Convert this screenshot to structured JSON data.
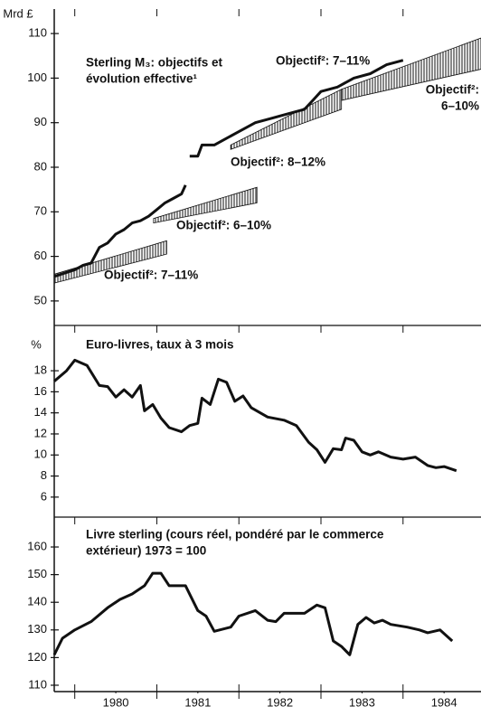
{
  "chart_data": [
    {
      "type": "line",
      "y_label": "Mrd £",
      "title": [
        "Sterling M₃: objectifs et",
        "évolution effective¹"
      ],
      "annotations": [
        "Objectif²: 7–11%",
        "Objectif²: 6–10%",
        "Objectif²: 8–12%",
        "Objectif²: 7–11%",
        "Objectif²:",
        "6–10%"
      ],
      "color": "#111",
      "xlim": [
        1979.75,
        1984.95
      ],
      "ylim": [
        44.5,
        115.5
      ],
      "yticks": [
        50,
        60,
        70,
        80,
        90,
        100,
        110
      ],
      "x": [
        1979.75,
        1980.0,
        1980.1,
        1980.2,
        1980.3,
        1980.4,
        1980.5,
        1980.6,
        1980.7,
        1980.8,
        1980.9,
        1981.0,
        1981.1,
        1981.2,
        1981.3,
        1981.35,
        1981.38,
        1981.4,
        1981.5,
        1981.55,
        1981.7,
        1981.8,
        1982.0,
        1982.2,
        1982.4,
        1982.6,
        1982.8,
        1982.9,
        1983.0,
        1983.2,
        1983.4,
        1983.6,
        1983.8,
        1984.0
      ],
      "values": [
        55.5,
        57,
        58,
        58.5,
        62,
        63,
        65,
        66,
        67.5,
        68,
        69,
        70.5,
        72,
        73,
        74,
        76,
        null,
        82.5,
        82.5,
        85,
        85,
        86,
        88,
        90,
        91,
        92,
        93,
        95,
        97,
        98,
        100,
        101,
        103,
        104
      ],
      "bands": [
        {
          "x": [
            1979.75,
            1981.12
          ],
          "low": [
            54,
            60.5
          ],
          "high": [
            56,
            63.5
          ]
        },
        {
          "x": [
            1980.96,
            1982.22
          ],
          "low": [
            67.5,
            72
          ],
          "high": [
            68.5,
            75.5
          ]
        },
        {
          "x": [
            1981.9,
            1983.25
          ],
          "low": [
            84,
            93
          ],
          "high": [
            85,
            97.5
          ]
        },
        {
          "x": [
            1983.25,
            1984.95
          ],
          "low": [
            95,
            102
          ],
          "high": [
            97.5,
            109
          ]
        }
      ]
    },
    {
      "type": "line",
      "y_label": "%",
      "title": [
        "Euro-livres, taux à 3 mois"
      ],
      "color": "#111",
      "xlim": [
        1979.75,
        1984.95
      ],
      "ylim": [
        4.1,
        22.3
      ],
      "yticks": [
        6,
        8,
        10,
        12,
        14,
        16,
        18
      ],
      "x": [
        1979.75,
        1979.9,
        1980.0,
        1980.15,
        1980.3,
        1980.4,
        1980.5,
        1980.6,
        1980.7,
        1980.8,
        1980.85,
        1980.95,
        1981.05,
        1981.15,
        1981.3,
        1981.4,
        1981.5,
        1981.55,
        1981.65,
        1981.75,
        1981.85,
        1981.95,
        1982.05,
        1982.15,
        1982.35,
        1982.55,
        1982.7,
        1982.85,
        1982.95,
        1983.05,
        1983.15,
        1983.25,
        1983.3,
        1983.4,
        1983.5,
        1983.6,
        1983.7,
        1983.85,
        1984.0,
        1984.15,
        1984.3,
        1984.4,
        1984.5,
        1984.65
      ],
      "values": [
        17,
        18,
        19,
        18.5,
        16.6,
        16.5,
        15.5,
        16.2,
        15.5,
        16.6,
        14.2,
        14.8,
        13.5,
        12.6,
        12.2,
        12.8,
        13,
        15.4,
        14.8,
        17.2,
        16.9,
        15.1,
        15.6,
        14.5,
        13.6,
        13.3,
        12.8,
        11.2,
        10.5,
        9.3,
        10.6,
        10.5,
        11.6,
        11.4,
        10.3,
        10,
        10.3,
        9.8,
        9.6,
        9.8,
        9.0,
        8.8,
        8.9,
        8.5
      ]
    },
    {
      "type": "line",
      "title": [
        "Livre sterling (cours réel, pondéré par le commerce",
        "extérieur) 1973 = 100"
      ],
      "color": "#111",
      "xlim": [
        1979.75,
        1984.95
      ],
      "ylim": [
        107.7,
        170.8
      ],
      "yticks": [
        110,
        120,
        130,
        140,
        150,
        160
      ],
      "xticks": [
        {
          "value": 1980.5,
          "label": "1980"
        },
        {
          "value": 1981.5,
          "label": "1981"
        },
        {
          "value": 1982.5,
          "label": "1982"
        },
        {
          "value": 1983.5,
          "label": "1983"
        },
        {
          "value": 1984.5,
          "label": "1984"
        }
      ],
      "x": [
        1979.75,
        1979.85,
        1980.0,
        1980.2,
        1980.4,
        1980.55,
        1980.7,
        1980.85,
        1980.95,
        1981.05,
        1981.15,
        1981.35,
        1981.5,
        1981.6,
        1981.7,
        1981.9,
        1982.0,
        1982.2,
        1982.35,
        1982.45,
        1982.55,
        1982.8,
        1982.95,
        1983.05,
        1983.15,
        1983.25,
        1983.35,
        1983.45,
        1983.55,
        1983.65,
        1983.75,
        1983.85,
        1984.05,
        1984.2,
        1984.3,
        1984.45,
        1984.6
      ],
      "values": [
        121,
        127,
        130,
        133,
        138,
        141,
        143,
        146,
        150.5,
        150.5,
        146,
        146,
        137,
        135,
        129.5,
        131,
        135,
        137,
        133.5,
        133,
        136,
        136,
        139,
        138,
        126,
        124,
        121,
        132,
        134.5,
        132.5,
        133.5,
        132,
        131,
        130,
        129,
        130,
        126
      ]
    }
  ]
}
